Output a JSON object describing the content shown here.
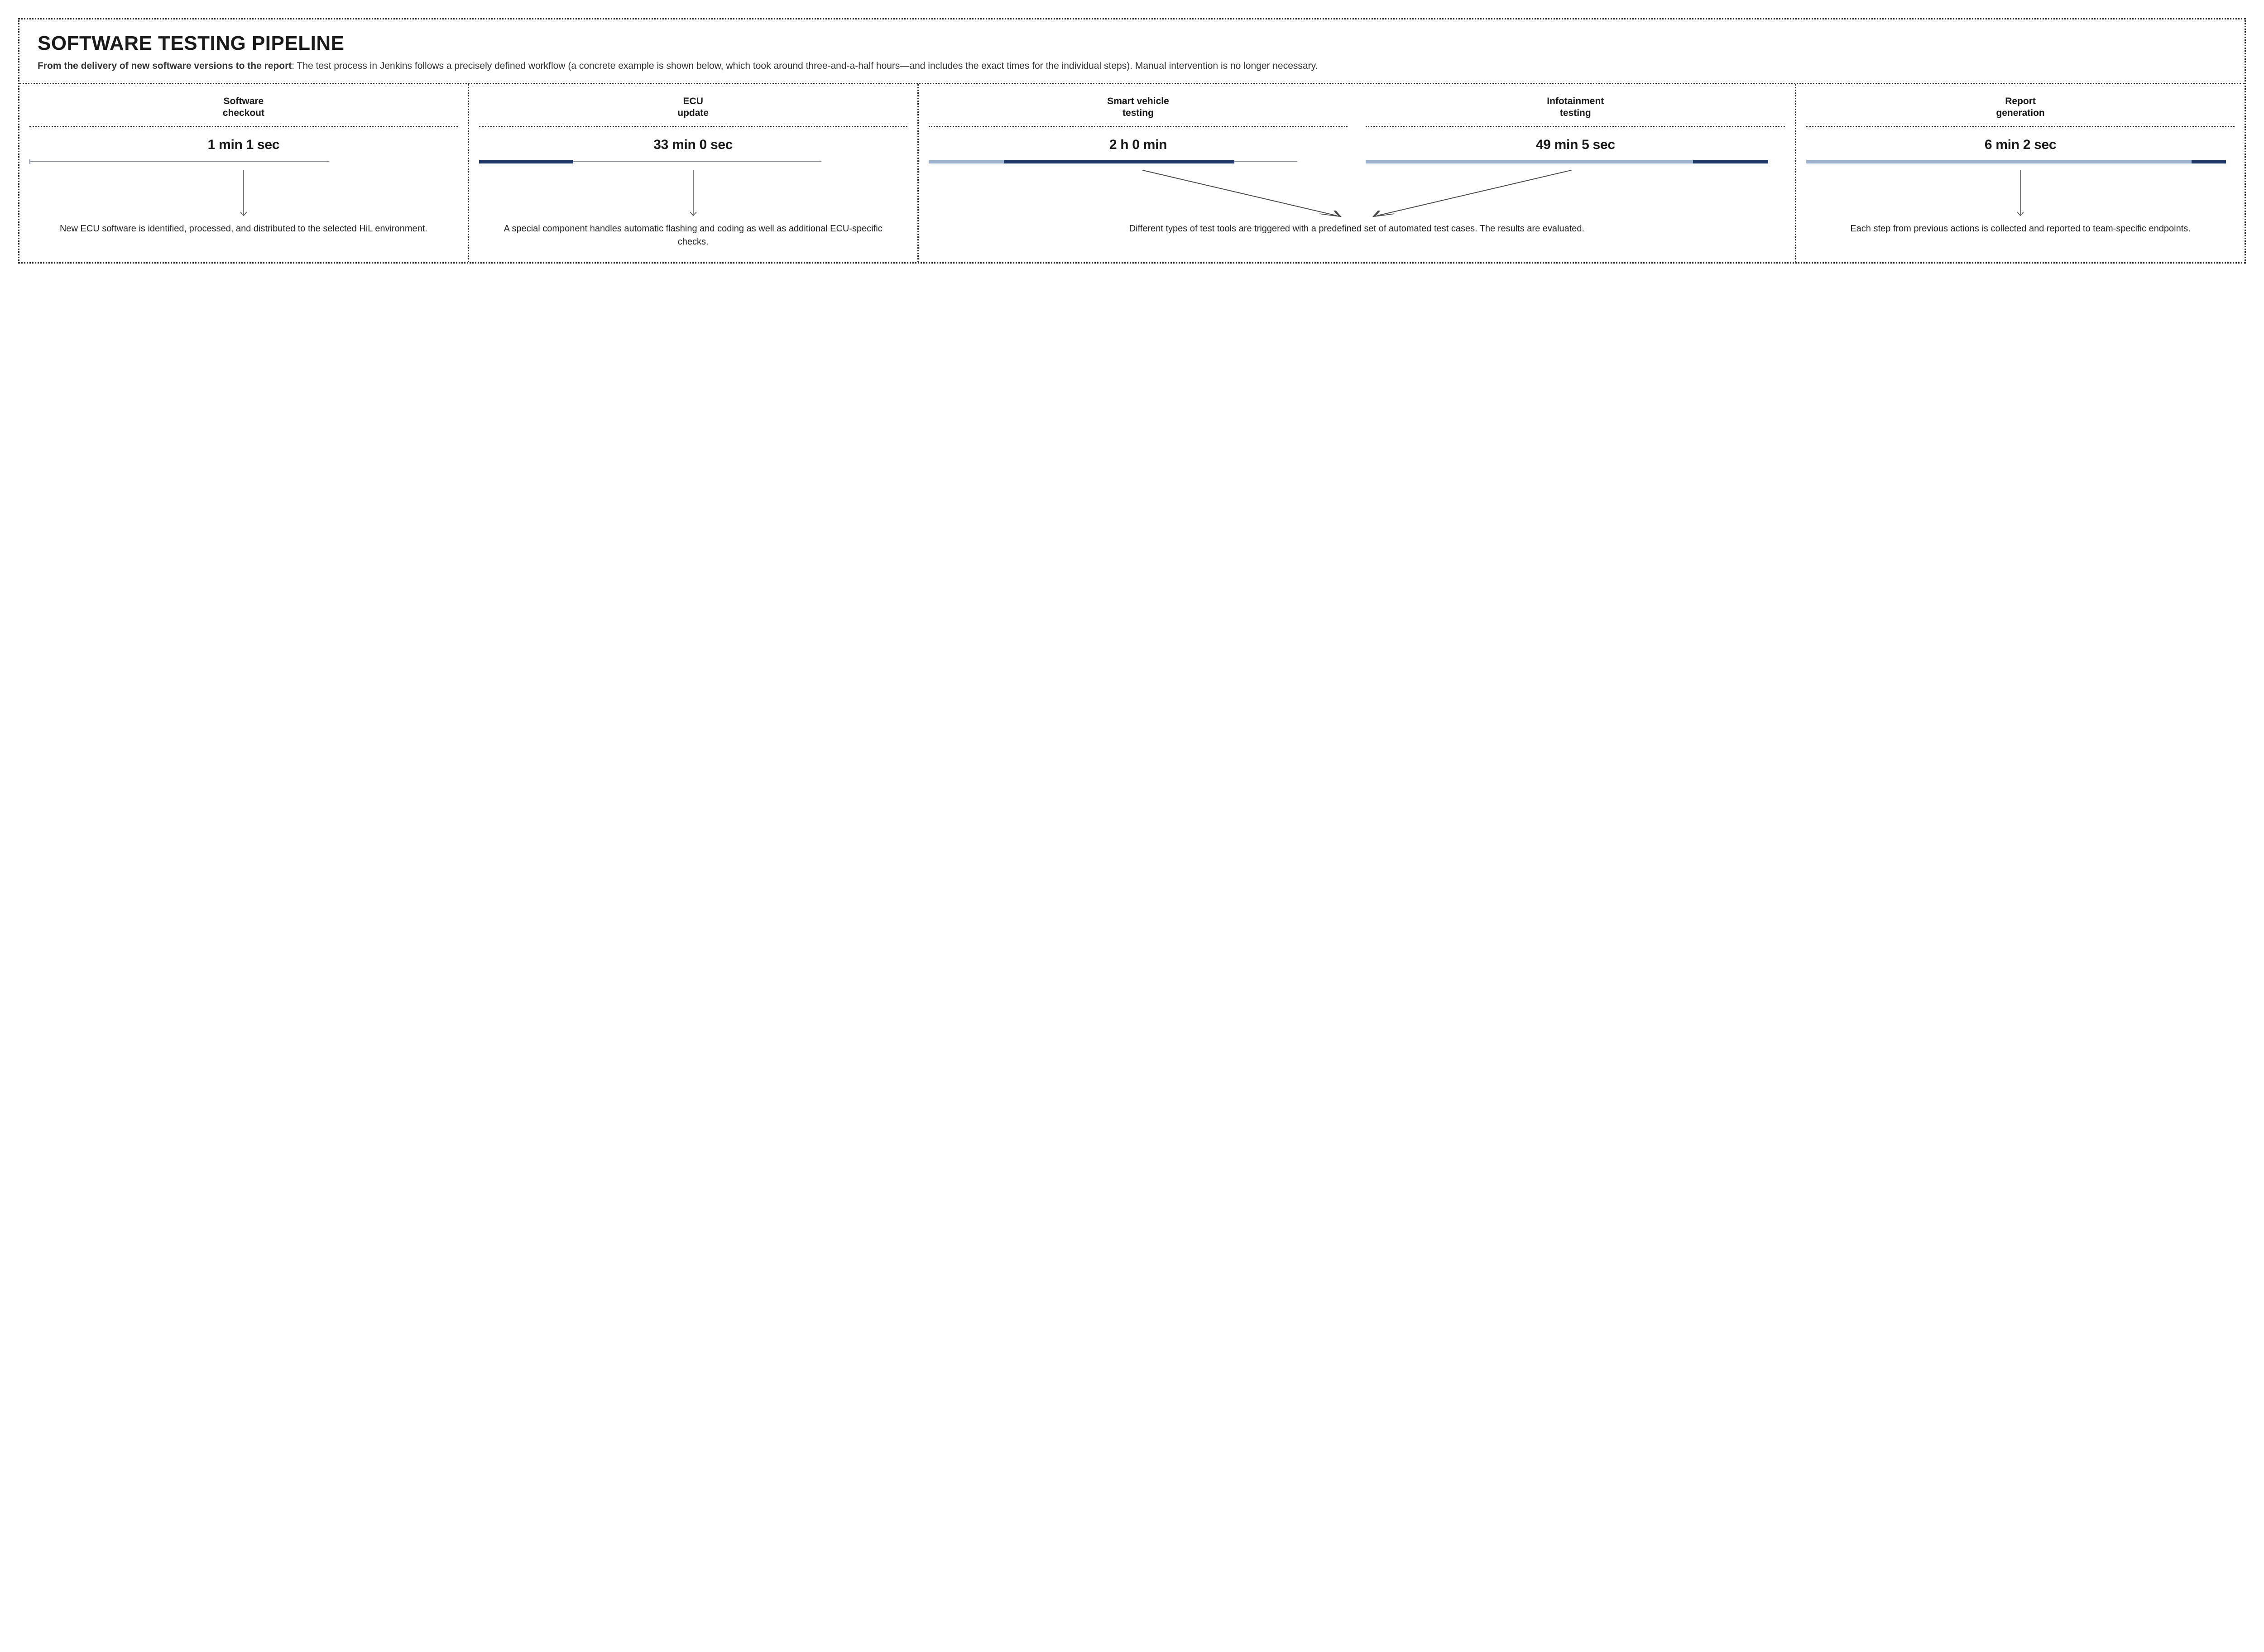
{
  "colors": {
    "text": "#1a1a1a",
    "dotted_border": "#333333",
    "bar_line": "#7a8aa8",
    "bar_light": "#9db4d3",
    "bar_dark": "#1f3a6e",
    "arrow": "#4a4a4a",
    "background": "#ffffff"
  },
  "typography": {
    "title_size_pt": 44,
    "title_weight": 800,
    "subtitle_size_pt": 21,
    "step_title_size_pt": 21,
    "step_title_weight": 700,
    "step_time_size_pt": 30,
    "step_time_weight": 800,
    "desc_size_pt": 20
  },
  "header": {
    "title": "SOFTWARE TESTING PIPELINE",
    "subtitle_bold": "From the delivery of new software versions to the report",
    "subtitle_rest": ": The test process in Jenkins follows a precisely defined workflow (a concrete example is shown below, which took around three-and-a-half hours—and includes the exact times for the individual steps). Manual intervention is no longer necessary."
  },
  "steps": [
    {
      "id": "software-checkout",
      "title": "Software\ncheckout",
      "time": "1 min 1 sec",
      "desc": "New ECU software is identified, processed, and distributed to the selected HiL environment.",
      "wide": false,
      "bar": {
        "type": "thin-tick",
        "tick_left_pct": 0,
        "line_end_pct": 70
      },
      "arrow": {
        "type": "down"
      }
    },
    {
      "id": "ecu-update",
      "title": "ECU\nupdate",
      "time": "33 min 0 sec",
      "desc": "A special component handles automatic flashing and coding as well as additional ECU-specific checks.",
      "wide": false,
      "bar": {
        "type": "dark-on-line",
        "dark_left_pct": 0,
        "dark_width_pct": 22,
        "line_end_pct": 80
      },
      "arrow": {
        "type": "down"
      }
    },
    {
      "id": "smart-vehicle-testing",
      "title": "Smart vehicle\ntesting",
      "time": "2 h 0 min",
      "desc": "Different types of test tools are triggered with a predefined set of automated test cases. The results are evaluated.",
      "wide": true,
      "bar": {
        "type": "light-dark",
        "light_left_pct": 0,
        "light_width_pct": 18,
        "dark_left_pct": 18,
        "dark_width_pct": 55,
        "line_end_pct": 88
      },
      "arrow": {
        "type": "converge",
        "side": "left"
      }
    },
    {
      "id": "infotainment-testing",
      "title": "Infotainment\ntesting",
      "time": "49 min 5 sec",
      "desc": "",
      "wide": false,
      "merged_into": "smart-vehicle-testing",
      "bar": {
        "type": "light-dark-end",
        "light_left_pct": 0,
        "light_width_pct": 78,
        "dark_left_pct": 78,
        "dark_width_pct": 18
      },
      "arrow": {
        "type": "converge",
        "side": "right"
      }
    },
    {
      "id": "report-generation",
      "title": "Report\ngeneration",
      "time": "6 min 2 sec",
      "desc": "Each step from previous actions is collected and reported to team-specific endpoints.",
      "wide": false,
      "bar": {
        "type": "light-dark-end",
        "light_left_pct": 0,
        "light_width_pct": 90,
        "dark_left_pct": 90,
        "dark_width_pct": 8
      },
      "arrow": {
        "type": "down"
      }
    }
  ]
}
